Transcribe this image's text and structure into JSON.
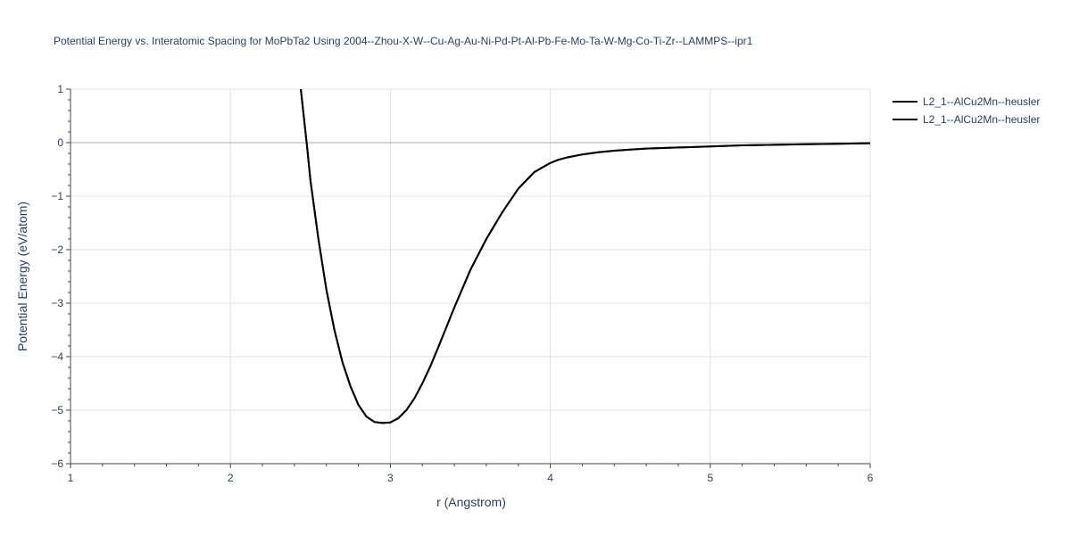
{
  "chart_data": {
    "type": "line",
    "title": "Potential Energy vs. Interatomic Spacing for MoPbTa2 Using 2004--Zhou-X-W--Cu-Ag-Au-Ni-Pd-Pt-Al-Pb-Fe-Mo-Ta-W-Mg-Co-Ti-Zr--LAMMPS--ipr1",
    "xlabel": "r (Angstrom)",
    "ylabel": "Potential Energy (eV/atom)",
    "xlim": [
      1,
      6
    ],
    "ylim": [
      -6,
      1
    ],
    "x_ticks": [
      "1",
      "2",
      "3",
      "4",
      "5",
      "6"
    ],
    "y_ticks": [
      "1",
      "0",
      "−1",
      "−2",
      "−3",
      "−4",
      "−5",
      "−6"
    ],
    "grid": true,
    "legend_position": "top-right",
    "series": [
      {
        "name": "L2_1--AlCu2Mn--heusler",
        "color": "#000000",
        "x": [
          2.44,
          2.46,
          2.48,
          2.5,
          2.55,
          2.6,
          2.65,
          2.7,
          2.75,
          2.8,
          2.85,
          2.9,
          2.95,
          3.0,
          3.05,
          3.1,
          3.15,
          3.2,
          3.25,
          3.3,
          3.35,
          3.4,
          3.5,
          3.6,
          3.7,
          3.8,
          3.9,
          4.0,
          4.05,
          4.1,
          4.2,
          4.3,
          4.4,
          4.5,
          4.6,
          4.8,
          5.0,
          5.2,
          5.4,
          5.6,
          5.8,
          6.0
        ],
        "y": [
          1.0,
          0.45,
          -0.1,
          -0.7,
          -1.8,
          -2.75,
          -3.5,
          -4.1,
          -4.55,
          -4.9,
          -5.12,
          -5.22,
          -5.24,
          -5.23,
          -5.15,
          -5.0,
          -4.78,
          -4.5,
          -4.18,
          -3.82,
          -3.45,
          -3.08,
          -2.38,
          -1.8,
          -1.3,
          -0.86,
          -0.55,
          -0.38,
          -0.32,
          -0.28,
          -0.22,
          -0.18,
          -0.15,
          -0.13,
          -0.11,
          -0.09,
          -0.07,
          -0.05,
          -0.04,
          -0.03,
          -0.02,
          -0.01
        ]
      },
      {
        "name": "L2_1--AlCu2Mn--heusler",
        "color": "#000000",
        "x": [
          2.44,
          2.46,
          2.48,
          2.5,
          2.55,
          2.6,
          2.65,
          2.7,
          2.75,
          2.8,
          2.85,
          2.9,
          2.95,
          3.0,
          3.05,
          3.1,
          3.15,
          3.2,
          3.25,
          3.3,
          3.35,
          3.4,
          3.5,
          3.6,
          3.7,
          3.8,
          3.9,
          4.0,
          4.05,
          4.1,
          4.2,
          4.3,
          4.4,
          4.5,
          4.6,
          4.8,
          5.0,
          5.2,
          5.4,
          5.6,
          5.8,
          6.0
        ],
        "y": [
          1.0,
          0.45,
          -0.1,
          -0.7,
          -1.8,
          -2.75,
          -3.5,
          -4.1,
          -4.55,
          -4.9,
          -5.12,
          -5.22,
          -5.24,
          -5.23,
          -5.15,
          -5.0,
          -4.78,
          -4.5,
          -4.18,
          -3.82,
          -3.45,
          -3.08,
          -2.38,
          -1.8,
          -1.3,
          -0.86,
          -0.55,
          -0.38,
          -0.32,
          -0.28,
          -0.22,
          -0.18,
          -0.15,
          -0.13,
          -0.11,
          -0.09,
          -0.07,
          -0.05,
          -0.04,
          -0.03,
          -0.02,
          -0.01
        ]
      }
    ]
  }
}
